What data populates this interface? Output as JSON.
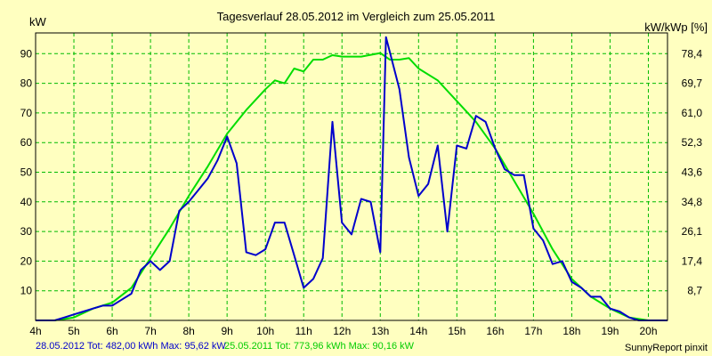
{
  "chart_data": {
    "type": "line",
    "title": "Tagesverlauf 28.05.2012 im Vergleich zum 25.05.2011",
    "ylabel_left": "kW",
    "ylabel_right": "kW/kWp [%]",
    "xlim": [
      4,
      20.5
    ],
    "ylim": [
      0,
      97
    ],
    "x_ticks": [
      "4h",
      "5h",
      "6h",
      "7h",
      "8h",
      "9h",
      "10h",
      "11h",
      "12h",
      "13h",
      "14h",
      "15h",
      "16h",
      "17h",
      "18h",
      "19h",
      "20h"
    ],
    "y_ticks_left": [
      10,
      20,
      30,
      40,
      50,
      60,
      70,
      80,
      90
    ],
    "y_ticks_right": [
      "8,7",
      "17,4",
      "26,1",
      "34,8",
      "43,6",
      "52,3",
      "61,0",
      "69,7",
      "78,4"
    ],
    "grid": true,
    "colors": {
      "series_2012": "#0000CC",
      "series_2011": "#00DD00",
      "grid": "#00BB00",
      "axis": "#000000"
    },
    "series": [
      {
        "name": "28.05.2012",
        "points": [
          [
            4.0,
            0
          ],
          [
            4.5,
            0
          ],
          [
            4.75,
            1
          ],
          [
            5.0,
            2
          ],
          [
            5.25,
            3
          ],
          [
            5.5,
            4
          ],
          [
            5.75,
            5
          ],
          [
            6.0,
            5
          ],
          [
            6.25,
            7
          ],
          [
            6.5,
            9
          ],
          [
            6.75,
            17
          ],
          [
            7.0,
            20
          ],
          [
            7.25,
            17
          ],
          [
            7.5,
            20
          ],
          [
            7.75,
            37
          ],
          [
            8.0,
            40
          ],
          [
            8.25,
            44
          ],
          [
            8.5,
            48
          ],
          [
            8.75,
            54
          ],
          [
            9.0,
            62
          ],
          [
            9.25,
            53
          ],
          [
            9.5,
            23
          ],
          [
            9.75,
            22
          ],
          [
            10.0,
            24
          ],
          [
            10.25,
            33
          ],
          [
            10.5,
            33
          ],
          [
            10.75,
            22
          ],
          [
            11.0,
            11
          ],
          [
            11.25,
            14
          ],
          [
            11.5,
            21
          ],
          [
            11.75,
            67
          ],
          [
            12.0,
            33
          ],
          [
            12.25,
            29
          ],
          [
            12.5,
            41
          ],
          [
            12.75,
            40
          ],
          [
            13.0,
            23
          ],
          [
            13.15,
            95.6
          ],
          [
            13.5,
            78
          ],
          [
            13.75,
            55
          ],
          [
            14.0,
            42
          ],
          [
            14.25,
            46
          ],
          [
            14.5,
            59
          ],
          [
            14.75,
            30
          ],
          [
            15.0,
            59
          ],
          [
            15.25,
            58
          ],
          [
            15.5,
            69
          ],
          [
            15.75,
            67
          ],
          [
            16.0,
            58
          ],
          [
            16.25,
            51
          ],
          [
            16.5,
            49
          ],
          [
            16.75,
            49
          ],
          [
            17.0,
            31
          ],
          [
            17.25,
            27
          ],
          [
            17.5,
            19
          ],
          [
            17.75,
            20
          ],
          [
            18.0,
            13
          ],
          [
            18.25,
            11
          ],
          [
            18.5,
            8
          ],
          [
            18.75,
            8
          ],
          [
            19.0,
            4
          ],
          [
            19.25,
            3
          ],
          [
            19.5,
            1
          ],
          [
            19.75,
            0
          ],
          [
            20.5,
            0
          ]
        ]
      },
      {
        "name": "25.05.2011",
        "points": [
          [
            4.0,
            0
          ],
          [
            4.5,
            0
          ],
          [
            5.0,
            1
          ],
          [
            5.5,
            4
          ],
          [
            6.0,
            6
          ],
          [
            6.5,
            11
          ],
          [
            7.0,
            21
          ],
          [
            7.5,
            31
          ],
          [
            8.0,
            42
          ],
          [
            8.5,
            52
          ],
          [
            9.0,
            63
          ],
          [
            9.5,
            71
          ],
          [
            10.0,
            78
          ],
          [
            10.25,
            81
          ],
          [
            10.5,
            80
          ],
          [
            10.75,
            85
          ],
          [
            11.0,
            84
          ],
          [
            11.25,
            88
          ],
          [
            11.5,
            88
          ],
          [
            11.75,
            89.5
          ],
          [
            12.0,
            89
          ],
          [
            12.5,
            89
          ],
          [
            13.0,
            90.2
          ],
          [
            13.25,
            88
          ],
          [
            13.5,
            88
          ],
          [
            13.75,
            88.5
          ],
          [
            14.0,
            85
          ],
          [
            14.5,
            81
          ],
          [
            15.0,
            74
          ],
          [
            15.5,
            67
          ],
          [
            16.0,
            58
          ],
          [
            16.5,
            47
          ],
          [
            17.0,
            36
          ],
          [
            17.5,
            24
          ],
          [
            18.0,
            14
          ],
          [
            18.5,
            8
          ],
          [
            19.0,
            4
          ],
          [
            19.5,
            1
          ],
          [
            20.0,
            0
          ],
          [
            20.5,
            0
          ]
        ]
      }
    ]
  },
  "footer": {
    "series1_label": "28.05.2012 Tot: 482,00 kWh Max: 95,62 kW",
    "series2_label": "25.05.2011 Tot: 773,96 kWh Max: 90,16 kW",
    "credit": "SunnyReport pinxit"
  }
}
